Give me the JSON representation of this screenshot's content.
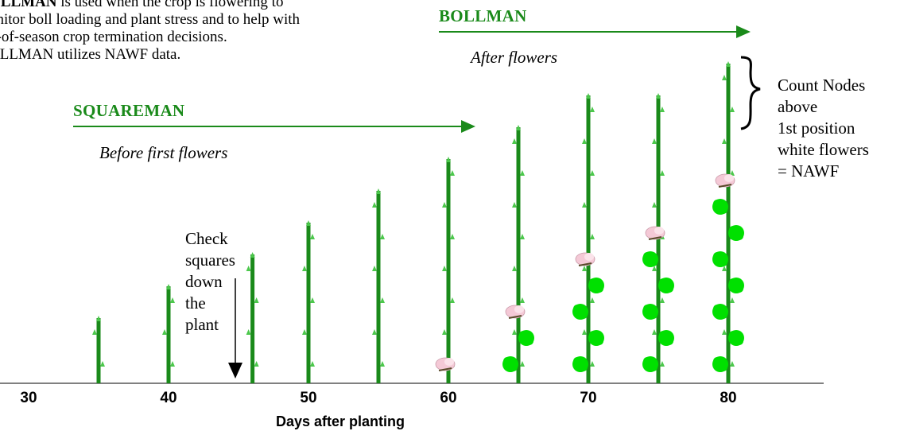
{
  "intro": {
    "line1_bold": "OLLMAN",
    "line1_rest": " is used when the crop is flowering to",
    "line2": "onitor boll loading and plant stress and to help with",
    "line3": "d-of-season crop termination decisions.",
    "line4": "OLLMAN utilizes NAWF data."
  },
  "phases": {
    "bollman": {
      "title": "BOLLMAN",
      "subtitle": "After flowers"
    },
    "squareman": {
      "title": "SQUAREMAN",
      "subtitle": "Before first flowers"
    }
  },
  "check_note": [
    "Check",
    "squares",
    "down",
    "the",
    "plant"
  ],
  "nawf_note": [
    "Count Nodes",
    "above",
    "1st position",
    "white flowers",
    "= NAWF"
  ],
  "axis": {
    "ticks": [
      "30",
      "40",
      "50",
      "60",
      "70",
      "80"
    ],
    "label": "Days after planting"
  },
  "plants": [
    {
      "day": 35,
      "stage": "square",
      "nodes": 2,
      "bolls": 0,
      "flower": false
    },
    {
      "day": 40,
      "stage": "square",
      "nodes": 3,
      "bolls": 0,
      "flower": false
    },
    {
      "day": 46,
      "stage": "square",
      "nodes": 4,
      "bolls": 0,
      "flower": false
    },
    {
      "day": 50,
      "stage": "square",
      "nodes": 5,
      "bolls": 0,
      "flower": false
    },
    {
      "day": 55,
      "stage": "square",
      "nodes": 6,
      "bolls": 0,
      "flower": false
    },
    {
      "day": 60,
      "stage": "flowering",
      "nodes": 7,
      "bolls": 0,
      "flower": true
    },
    {
      "day": 65,
      "stage": "flowering",
      "nodes": 8,
      "bolls": 2,
      "flower": true
    },
    {
      "day": 70,
      "stage": "flowering",
      "nodes": 9,
      "bolls": 4,
      "flower": true
    },
    {
      "day": 75,
      "stage": "flowering",
      "nodes": 9,
      "bolls": 5,
      "flower": true
    },
    {
      "day": 80,
      "stage": "flowering",
      "nodes": 10,
      "bolls": 7,
      "flower": true
    }
  ],
  "colors": {
    "stem": "#1a8a1a",
    "leaf": "#4cc84c",
    "boll": "#00e000",
    "arrow": "#1a8a1a",
    "flower": "#f4c9d6"
  }
}
